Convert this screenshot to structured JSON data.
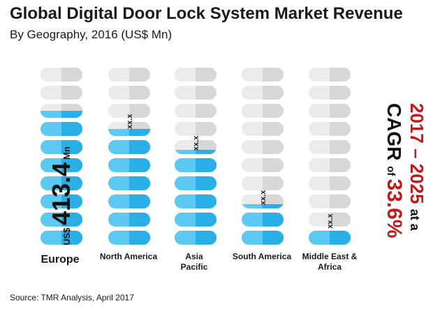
{
  "title": "Global Digital Door Lock System Market Revenue",
  "subtitle": "By Geography, 2016 (US$ Mn)",
  "source": "Source: TMR Analysis, April 2017",
  "colors": {
    "filled": "#29aee6",
    "filled_light": "#5dc8f2",
    "empty": "#d7d7d7",
    "empty_light": "#ebebeb",
    "accent_red": "#c01a1a"
  },
  "cagr": {
    "period": "2017 – 2025",
    "at_a": "at a",
    "label": "CAGR",
    "of": "of",
    "value": "33.6%"
  },
  "chart_data": {
    "type": "bar",
    "title": "Global Digital Door Lock System Market Revenue",
    "subtitle": "By Geography, 2016 (US$ Mn)",
    "units_per_column": 10,
    "categories": [
      "Europe",
      "North America",
      "Asia Pacific",
      "South America",
      "Middle East & Africa"
    ],
    "category_lines": [
      [
        "Europe"
      ],
      [
        "North America"
      ],
      [
        "Asia",
        "Pacific"
      ],
      [
        "South America"
      ],
      [
        "Middle East &",
        "Africa"
      ]
    ],
    "fill_units": [
      7.5,
      6.5,
      5.3,
      2.3,
      1.0
    ],
    "value_labels": [
      "413.4",
      "xx.x",
      "xx.x",
      "xx.x",
      "xx.x"
    ],
    "europe_label": {
      "prefix": "US$",
      "value": "413.4",
      "unit": "Mn"
    }
  }
}
